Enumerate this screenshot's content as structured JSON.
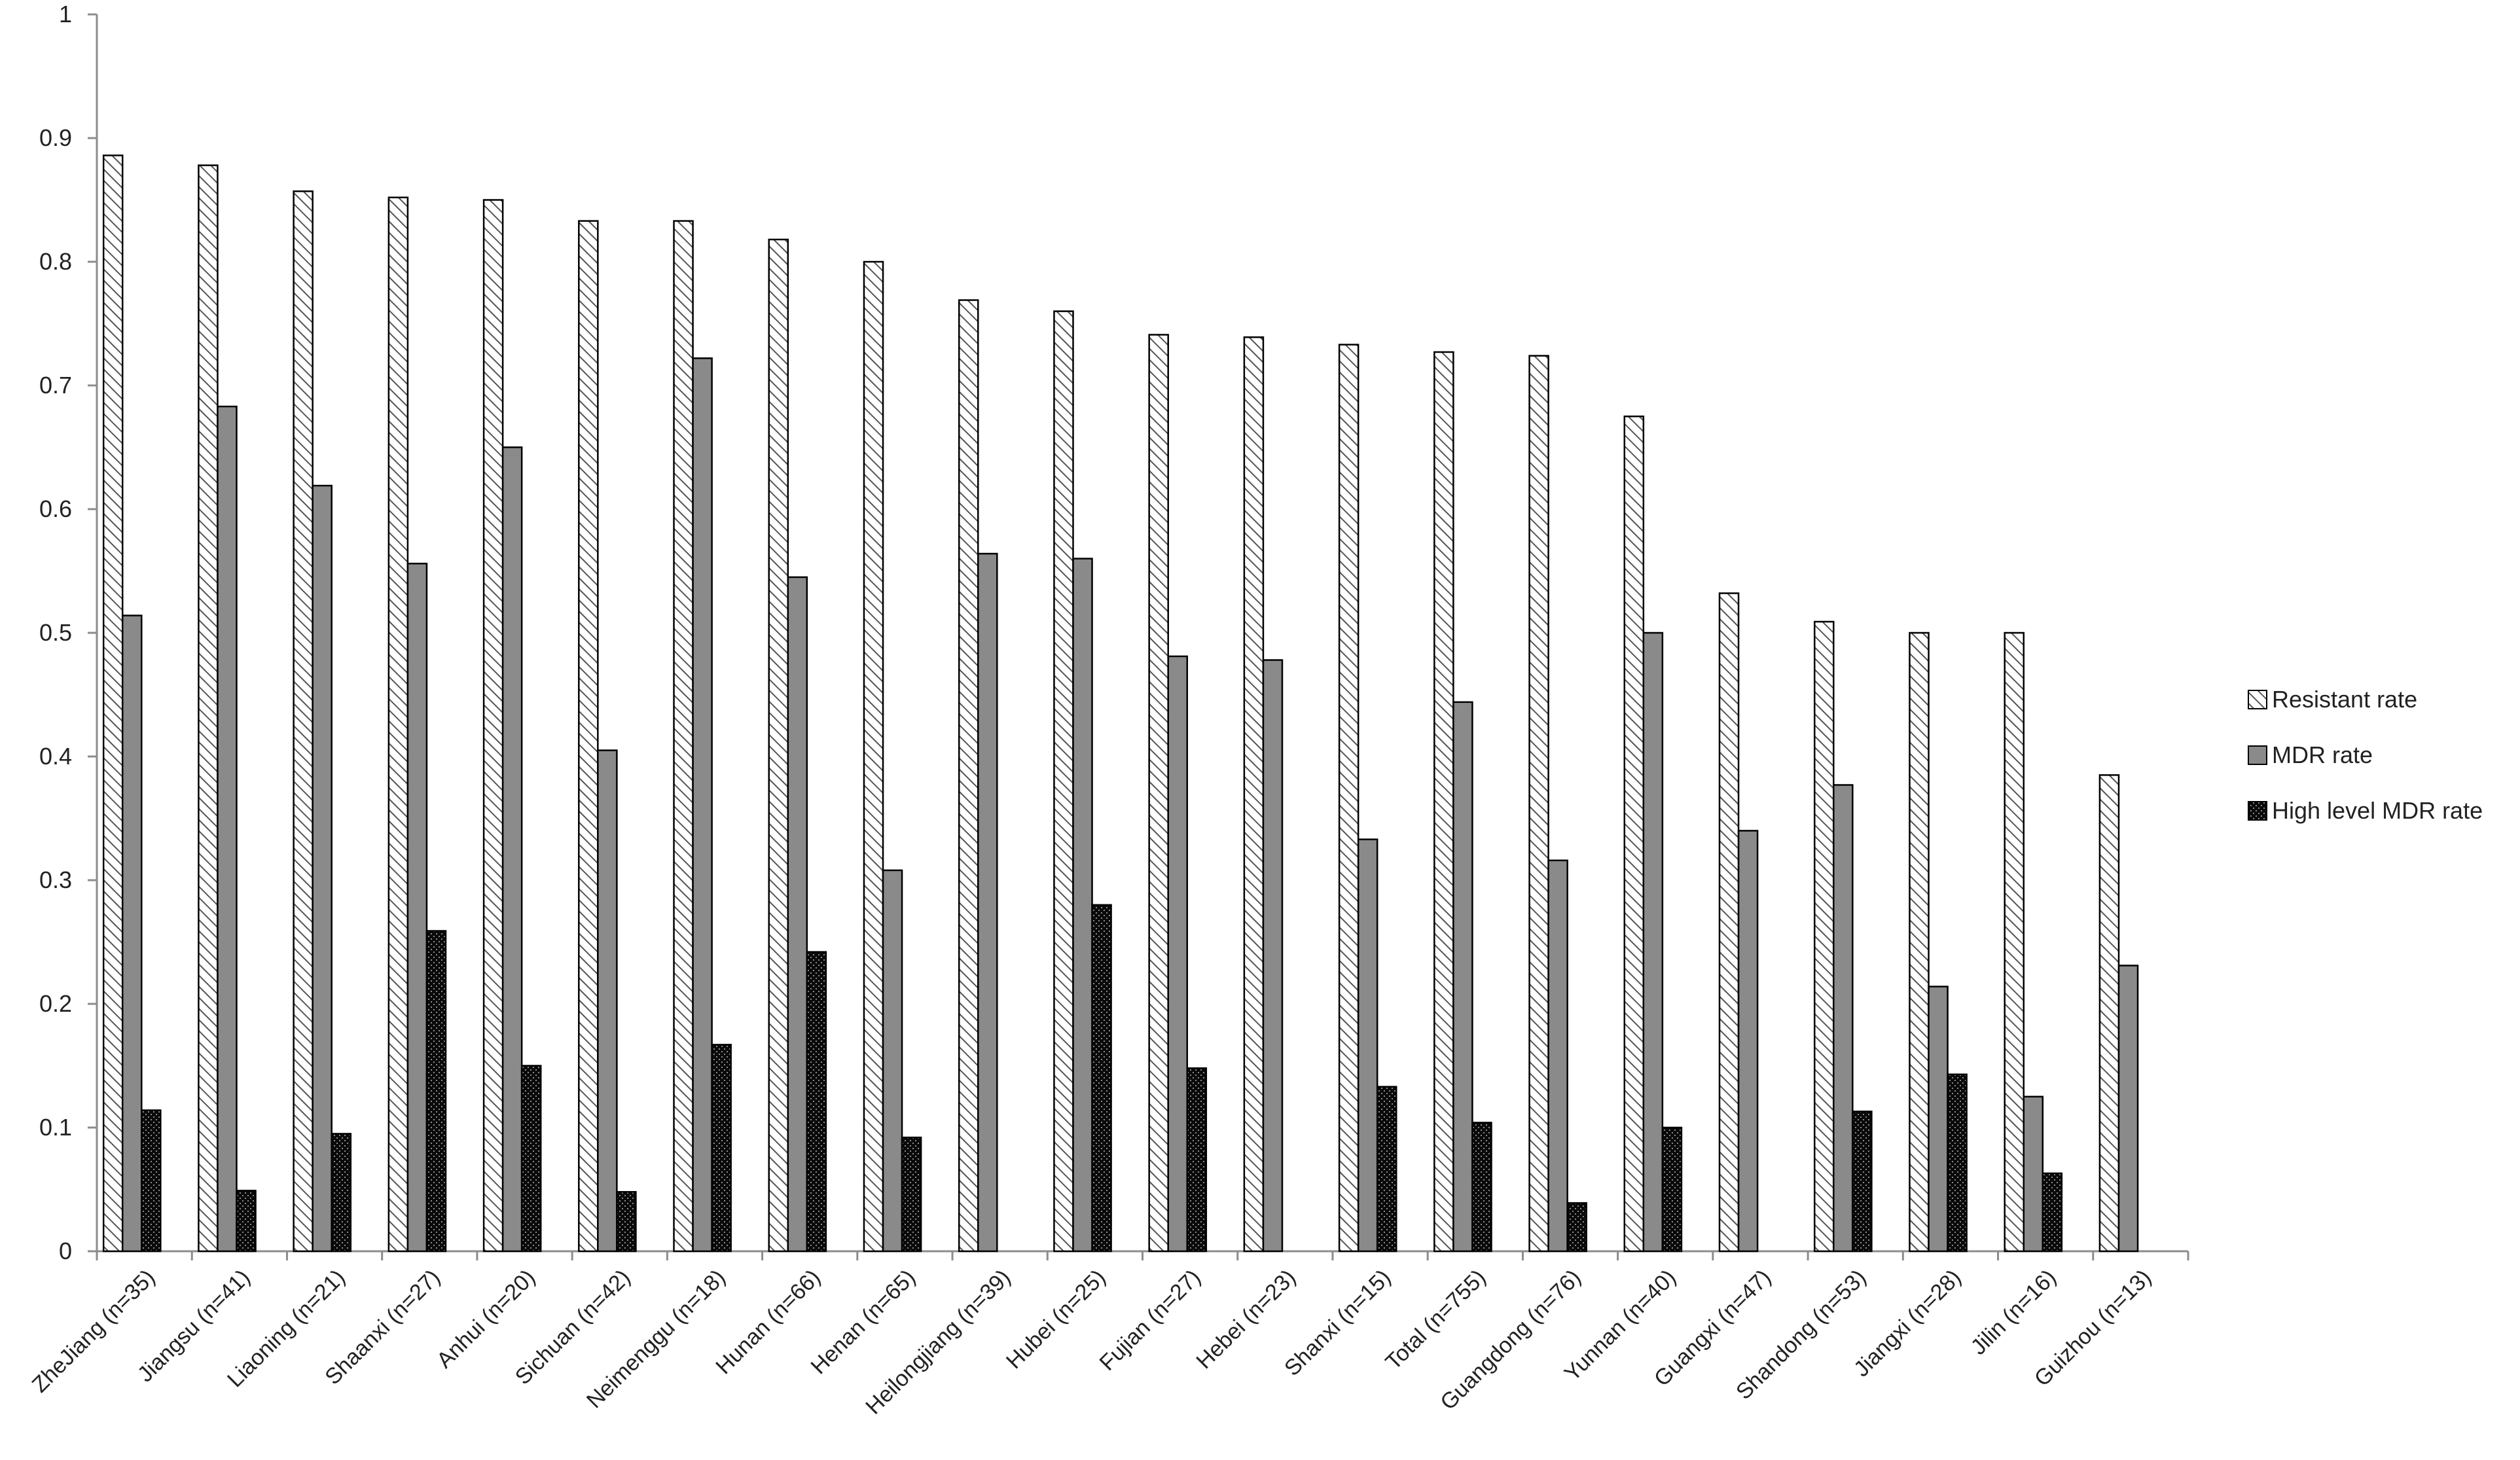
{
  "chart_data": {
    "type": "bar",
    "categories": [
      "ZheJiang (n=35)",
      "Jiangsu (n=41)",
      "Liaoning (n=21)",
      "Shaanxi (n=27)",
      "Anhui (n=20)",
      "Sichuan (n=42)",
      "Neimenggu (n=18)",
      "Hunan (n=66)",
      "Henan (n=65)",
      "Heilongjiang (n=39)",
      "Hubei (n=25)",
      "Fujian (n=27)",
      "Hebei (n=23)",
      "Shanxi (n=15)",
      "Total (n=755)",
      "Guangdong (n=76)",
      "Yunnan (n=40)",
      "Guangxi (n=47)",
      "Shandong (n=53)",
      "Jiangxi (n=28)",
      "Jilin (n=16)",
      "Guizhou (n=13)"
    ],
    "series": [
      {
        "name": "Resistant rate",
        "pattern": "diagonal-hatch",
        "values": [
          0.886,
          0.878,
          0.857,
          0.852,
          0.85,
          0.833,
          0.833,
          0.818,
          0.8,
          0.769,
          0.76,
          0.741,
          0.739,
          0.733,
          0.727,
          0.724,
          0.675,
          0.532,
          0.509,
          0.5,
          0.5,
          0.385
        ]
      },
      {
        "name": "MDR rate",
        "pattern": "solid-gray",
        "values": [
          0.514,
          0.683,
          0.619,
          0.556,
          0.65,
          0.405,
          0.722,
          0.545,
          0.308,
          0.564,
          0.56,
          0.481,
          0.478,
          0.333,
          0.444,
          0.316,
          0.5,
          0.34,
          0.377,
          0.214,
          0.125,
          0.231
        ]
      },
      {
        "name": "High level MDR rate",
        "pattern": "dotted-black",
        "values": [
          0.114,
          0.049,
          0.095,
          0.259,
          0.15,
          0.048,
          0.167,
          0.242,
          0.092,
          0,
          0.28,
          0.148,
          0,
          0.133,
          0.104,
          0.039,
          0.1,
          0,
          0.113,
          0.143,
          0.063,
          0
        ]
      }
    ],
    "title": "",
    "xlabel": "",
    "ylabel": "",
    "ylim": [
      0,
      1
    ],
    "yticks": [
      "0",
      "0.1",
      "0.2",
      "0.3",
      "0.4",
      "0.5",
      "0.6",
      "0.7",
      "0.8",
      "0.9",
      "1"
    ],
    "grid": false,
    "legend_position": "right",
    "colors": {
      "axis": "#8c8c8c",
      "bar_outline": "#000000",
      "mdr_fill": "#8a8a8a",
      "high_fill": "#111111",
      "hatch_line": "#555555"
    }
  }
}
